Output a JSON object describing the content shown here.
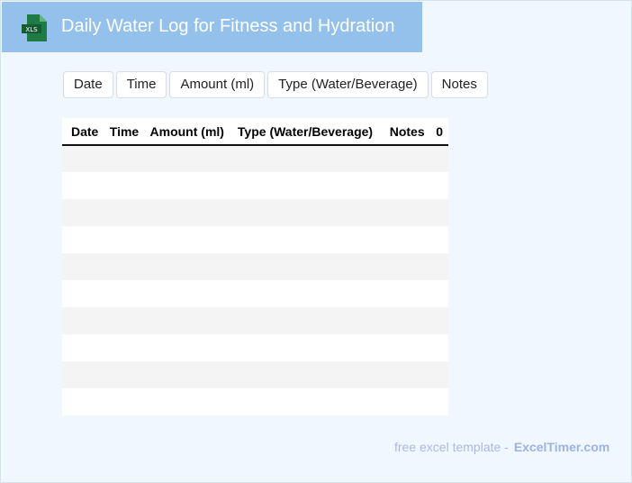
{
  "header": {
    "title": "Daily Water Log for Fitness and Hydration",
    "logo_text": "XLS",
    "logo_color": "#1e7b45",
    "bg": "#93c1ec"
  },
  "chips": [
    "Date",
    "Time",
    "Amount (ml)",
    "Type (Water/Beverage)",
    "Notes"
  ],
  "table": {
    "columns": [
      "Date",
      "Time",
      "Amount (ml)",
      "Type (Water/Beverage)",
      "Notes",
      "0"
    ],
    "row_count": 10
  },
  "footer": {
    "text": "free excel template -",
    "link": "ExcelTimer.com"
  }
}
